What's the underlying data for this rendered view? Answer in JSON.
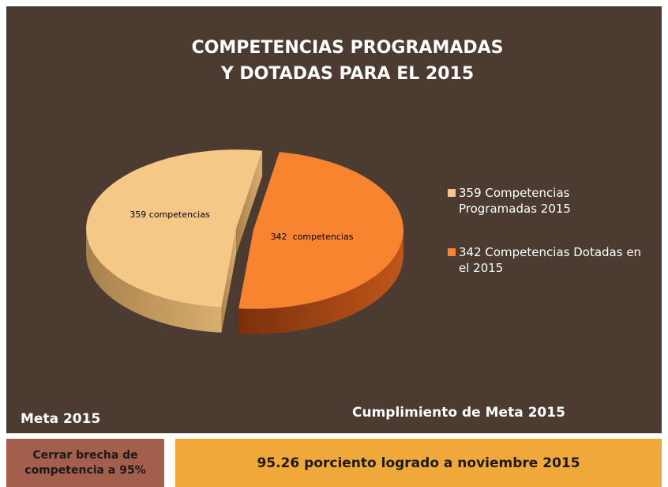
{
  "chart_data": {
    "type": "pie",
    "title": "COMPETENCIAS PROGRAMADAS Y DOTADAS PARA EL 2015",
    "categories": [
      "359 Competencias Programadas 2015",
      "342 Competencias Dotadas en el 2015"
    ],
    "values": [
      359,
      342
    ],
    "value_labels": [
      "359 competencias",
      "342  competencias"
    ],
    "colors": [
      "#f6c887",
      "#f98430"
    ]
  },
  "footer": {
    "meta_label": "Meta 2015",
    "result_label": "Cumplimiento de Meta 2015",
    "goal_box": "Cerrar brecha de competencia a 95%",
    "result_box": "95.26 porciento logrado a noviembre 2015"
  }
}
